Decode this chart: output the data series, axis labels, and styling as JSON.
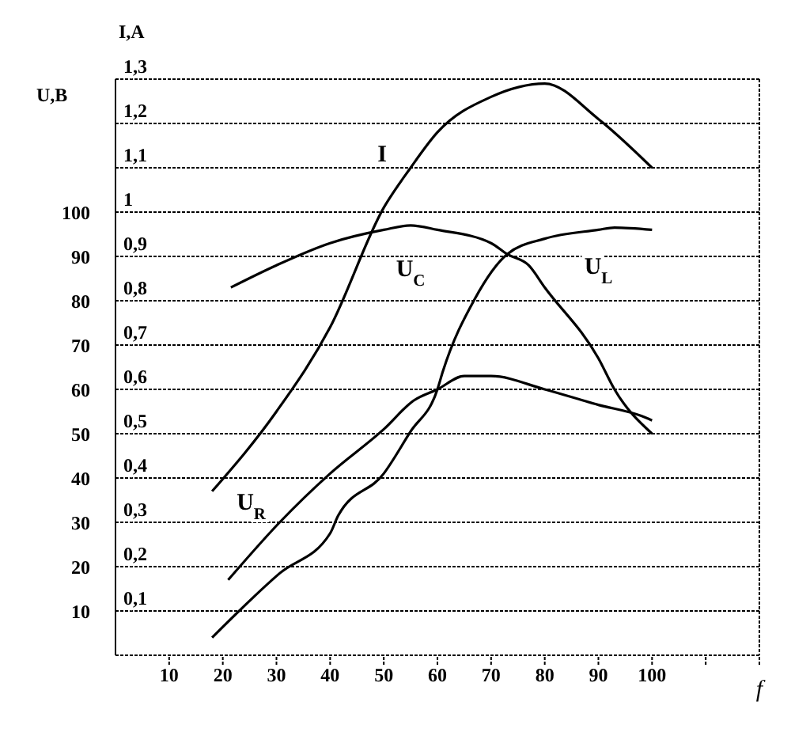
{
  "chart_data": {
    "type": "line",
    "xlabel": "f",
    "ylabel": "U,B",
    "y2label": "I,A",
    "xlim": [
      0,
      120
    ],
    "xticks": [
      10,
      20,
      30,
      40,
      50,
      60,
      70,
      80,
      90,
      100,
      {
        "value": 110,
        "label": null
      },
      {
        "value": 120,
        "label": null
      }
    ],
    "ylim": [
      0,
      130
    ],
    "yticks": [
      10,
      20,
      30,
      40,
      50,
      60,
      70,
      80,
      90,
      100
    ],
    "y2lim": [
      0,
      1.3
    ],
    "y2ticks": [
      {
        "value": 0.1,
        "label": "0,1"
      },
      {
        "value": 0.2,
        "label": "0,2"
      },
      {
        "value": 0.3,
        "label": "0,3"
      },
      {
        "value": 0.4,
        "label": "0,4"
      },
      {
        "value": 0.5,
        "label": "0,5"
      },
      {
        "value": 0.6,
        "label": "0,6"
      },
      {
        "value": 0.7,
        "label": "0,7"
      },
      {
        "value": 0.8,
        "label": "0,8"
      },
      {
        "value": 0.9,
        "label": "0,9"
      },
      {
        "value": 1,
        "label": "1"
      },
      {
        "value": 1.1,
        "label": "1,1"
      },
      {
        "value": 1.2,
        "label": "1,2"
      },
      {
        "value": 1.3,
        "label": "1,3"
      }
    ],
    "grid": true,
    "marker": "none",
    "line_style": "solid",
    "series": [
      {
        "name": "I",
        "color": "#000000",
        "axis": "y2",
        "x": [
          18,
          30,
          40,
          50,
          55,
          60,
          70,
          80,
          90,
          100
        ],
        "values": [
          0.37,
          0.55,
          0.74,
          1.01,
          1.1,
          1.18,
          1.26,
          1.29,
          1.21,
          1.1
        ]
      },
      {
        "name": "U$_{C}$",
        "color": "#000000",
        "x": [
          21.5,
          30,
          40,
          50,
          55,
          60,
          70,
          73,
          77,
          80,
          90,
          93,
          100
        ],
        "values": [
          83,
          88,
          93,
          96,
          97,
          96,
          93,
          90.5,
          88,
          83,
          67,
          60,
          50
        ]
      },
      {
        "name": "U$_{L}$",
        "color": "#000000",
        "x": [
          18,
          30.6,
          40,
          41.5,
          50,
          55,
          60,
          61,
          67,
          73,
          80,
          90,
          93,
          100
        ],
        "values": [
          4,
          18.5,
          27.5,
          31.5,
          41,
          50.5,
          60,
          64,
          80.5,
          90.5,
          94,
          96,
          96.5,
          96
        ]
      },
      {
        "name": "U$_{R}$",
        "color": "#000000",
        "x": [
          21,
          30.6,
          40,
          50,
          55.6,
          60,
          65,
          70,
          80,
          90,
          98,
          100
        ],
        "values": [
          17,
          30,
          41,
          51,
          57.5,
          60,
          63,
          63,
          60,
          56.5,
          54,
          53
        ]
      }
    ]
  }
}
